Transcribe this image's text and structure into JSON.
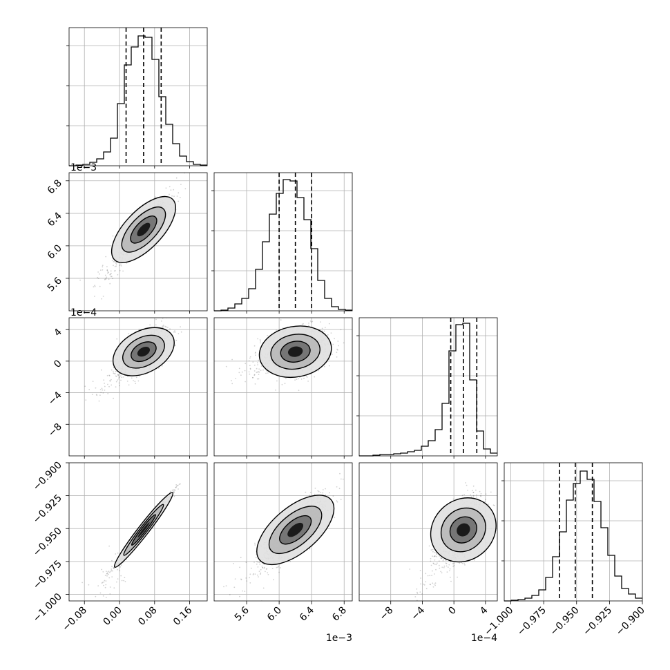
{
  "chart_data": {
    "type": "corner",
    "grid": true,
    "dims": [
      {
        "range": [
          -0.115,
          0.2
        ],
        "ticks": [
          -0.08,
          0.0,
          0.08,
          0.16
        ],
        "tick_labels": [
          "−0.08",
          "0.00",
          "0.08",
          "0.16"
        ],
        "offset_label": "",
        "quantiles": [
          0.015,
          0.055,
          0.095
        ],
        "mean": 0.055,
        "sd": 0.03,
        "hist_bins": [
          0,
          0.005,
          0.01,
          0.025,
          0.05,
          0.1,
          0.2,
          0.45,
          0.73,
          0.86,
          0.94,
          0.93,
          0.77,
          0.5,
          0.3,
          0.16,
          0.07,
          0.03,
          0.01,
          0.005
        ]
      },
      {
        "range": [
          5.2,
          6.9
        ],
        "ticks": [
          5.6,
          6.0,
          6.4,
          6.8
        ],
        "tick_labels": [
          "5.6",
          "6.0",
          "6.4",
          "6.8"
        ],
        "offset_label": "1e−3",
        "quantiles": [
          6.0,
          6.2,
          6.4
        ],
        "mean": 6.2,
        "sd": 0.2,
        "hist_bins": [
          0,
          0.005,
          0.02,
          0.05,
          0.09,
          0.16,
          0.3,
          0.5,
          0.7,
          0.85,
          0.95,
          0.94,
          0.82,
          0.66,
          0.45,
          0.22,
          0.09,
          0.03,
          0.01,
          0.005
        ]
      },
      {
        "range": [
          -12,
          5.5
        ],
        "ticks": [
          -8,
          -4,
          0,
          4
        ],
        "tick_labels": [
          "−8",
          "−4",
          "0",
          "4"
        ],
        "offset_label": "1e−4",
        "quantiles": [
          -0.4,
          1.2,
          2.9
        ],
        "mean": 1.2,
        "sd": 1.5,
        "hist_bins": [
          0,
          0.0,
          0.005,
          0.01,
          0.01,
          0.015,
          0.02,
          0.03,
          0.04,
          0.07,
          0.11,
          0.19,
          0.38,
          0.76,
          0.95,
          0.96,
          0.55,
          0.18,
          0.05,
          0.02
        ]
      },
      {
        "range": [
          -1.005,
          -0.9
        ],
        "ticks": [
          -1.0,
          -0.975,
          -0.95,
          -0.925,
          -0.9
        ],
        "tick_labels": [
          "−1.000",
          "−0.975",
          "−0.950",
          "−0.925",
          "−0.900"
        ],
        "offset_label": "",
        "quantiles": [
          -0.963,
          -0.951,
          -0.938
        ],
        "mean": -0.951,
        "sd": 0.013,
        "hist_bins": [
          0,
          0.005,
          0.01,
          0.02,
          0.04,
          0.08,
          0.17,
          0.32,
          0.5,
          0.73,
          0.85,
          0.94,
          0.88,
          0.72,
          0.53,
          0.33,
          0.18,
          0.09,
          0.05,
          0.02
        ]
      }
    ],
    "correlations": [
      [
        1.0,
        0.85,
        0.6,
        0.99
      ],
      [
        0.85,
        1.0,
        0.25,
        0.8
      ],
      [
        0.6,
        0.25,
        1.0,
        0.6
      ],
      [
        0.99,
        0.8,
        0.6,
        1.0
      ]
    ]
  }
}
